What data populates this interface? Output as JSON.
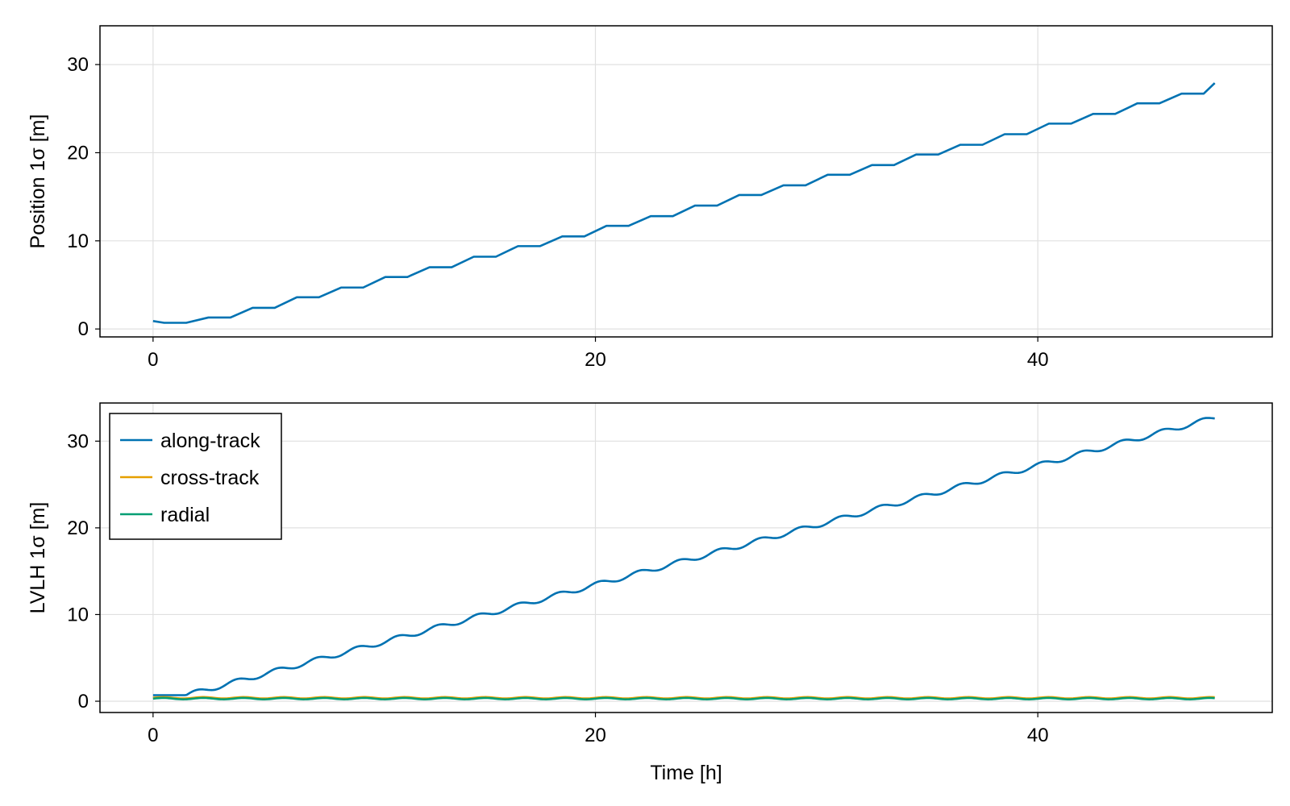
{
  "chart_data": [
    {
      "type": "line",
      "title": "",
      "xlabel": "",
      "ylabel": "Position 1σ [m]",
      "xlim": [
        -2.4,
        50.6
      ],
      "ylim": [
        -0.9,
        34.4
      ],
      "xticks": [
        0,
        20,
        40
      ],
      "yticks": [
        0,
        10,
        20,
        30
      ],
      "grid": true,
      "legend": null,
      "series": [
        {
          "color": "#0072b2",
          "x": [
            0,
            0.5,
            1.0,
            1.5,
            2.5,
            3.5,
            4.5,
            5.5,
            6.5,
            7.5,
            8.5,
            9.5,
            10.5,
            11.5,
            12.5,
            13.5,
            14.5,
            15.5,
            16.5,
            17.5,
            18.5,
            19.5,
            20.5,
            21.5,
            22.5,
            23.5,
            24.5,
            25.5,
            26.5,
            27.5,
            28.5,
            29.5,
            30.5,
            31.5,
            32.5,
            33.5,
            34.5,
            35.5,
            36.5,
            37.5,
            38.5,
            39.5,
            40.5,
            41.5,
            42.5,
            43.5,
            44.5,
            45.5,
            46.5,
            47.5,
            48.0
          ],
          "y": [
            0.9,
            0.7,
            0.7,
            0.7,
            1.3,
            1.3,
            2.4,
            2.4,
            3.6,
            3.6,
            4.7,
            4.7,
            5.9,
            5.9,
            7.0,
            7.0,
            8.2,
            8.2,
            9.4,
            9.4,
            10.5,
            10.5,
            11.7,
            11.7,
            12.8,
            12.8,
            14.0,
            14.0,
            15.2,
            15.2,
            16.3,
            16.3,
            17.5,
            17.5,
            18.6,
            18.6,
            19.8,
            19.8,
            20.9,
            20.9,
            22.1,
            22.1,
            23.3,
            23.3,
            24.4,
            24.4,
            25.6,
            25.6,
            26.7,
            26.7,
            27.9
          ]
        }
      ]
    },
    {
      "type": "line",
      "title": "",
      "xlabel": "Time [h]",
      "ylabel": "LVLH 1σ [m]",
      "xlim": [
        -2.4,
        50.6
      ],
      "ylim": [
        -1.3,
        34.4
      ],
      "xticks": [
        0,
        20,
        40
      ],
      "yticks": [
        0,
        10,
        20,
        30
      ],
      "grid": true,
      "legend": "top-left",
      "series": [
        {
          "name": "along-track",
          "color": "#0072b2",
          "x": [
            0,
            48
          ],
          "y": [
            0.7,
            32.7
          ]
        },
        {
          "name": "cross-track",
          "color": "#e69f00",
          "x": [
            0,
            48
          ],
          "y": [
            0.4,
            0.4
          ]
        },
        {
          "name": "radial",
          "color": "#009e73",
          "x": [
            0,
            48
          ],
          "y": [
            0.3,
            0.3
          ]
        }
      ]
    }
  ]
}
